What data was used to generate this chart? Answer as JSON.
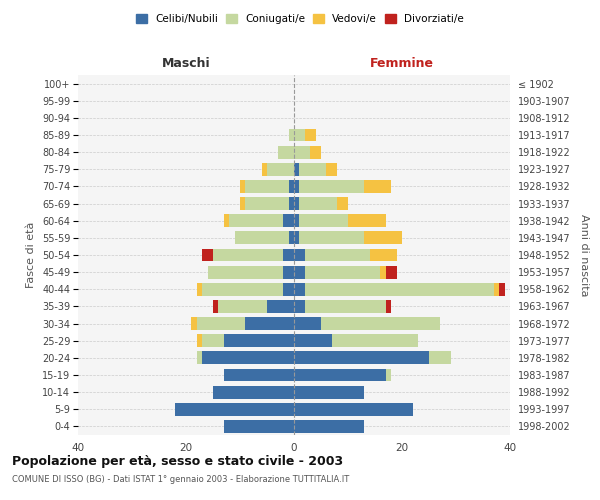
{
  "age_groups": [
    "0-4",
    "5-9",
    "10-14",
    "15-19",
    "20-24",
    "25-29",
    "30-34",
    "35-39",
    "40-44",
    "45-49",
    "50-54",
    "55-59",
    "60-64",
    "65-69",
    "70-74",
    "75-79",
    "80-84",
    "85-89",
    "90-94",
    "95-99",
    "100+"
  ],
  "birth_years": [
    "1998-2002",
    "1993-1997",
    "1988-1992",
    "1983-1987",
    "1978-1982",
    "1973-1977",
    "1968-1972",
    "1963-1967",
    "1958-1962",
    "1953-1957",
    "1948-1952",
    "1943-1947",
    "1938-1942",
    "1933-1937",
    "1928-1932",
    "1923-1927",
    "1918-1922",
    "1913-1917",
    "1908-1912",
    "1903-1907",
    "≤ 1902"
  ],
  "colors": {
    "celibi": "#3c6ea5",
    "coniugati": "#c5d8a0",
    "vedovi": "#f5c242",
    "divorziati": "#c0221e"
  },
  "males": {
    "celibi": [
      13,
      22,
      15,
      13,
      17,
      13,
      9,
      5,
      2,
      2,
      2,
      1,
      2,
      1,
      1,
      0,
      0,
      0,
      0,
      0,
      0
    ],
    "coniugati": [
      0,
      0,
      0,
      0,
      1,
      4,
      9,
      9,
      15,
      14,
      13,
      10,
      10,
      8,
      8,
      5,
      3,
      1,
      0,
      0,
      0
    ],
    "vedovi": [
      0,
      0,
      0,
      0,
      0,
      1,
      1,
      0,
      1,
      0,
      0,
      0,
      1,
      1,
      1,
      1,
      0,
      0,
      0,
      0,
      0
    ],
    "divorziati": [
      0,
      0,
      0,
      0,
      0,
      0,
      0,
      1,
      0,
      0,
      2,
      0,
      0,
      0,
      0,
      0,
      0,
      0,
      0,
      0,
      0
    ]
  },
  "females": {
    "celibi": [
      13,
      22,
      13,
      17,
      25,
      7,
      5,
      2,
      2,
      2,
      2,
      1,
      1,
      1,
      1,
      1,
      0,
      0,
      0,
      0,
      0
    ],
    "coniugati": [
      0,
      0,
      0,
      1,
      4,
      16,
      22,
      15,
      35,
      14,
      12,
      12,
      9,
      7,
      12,
      5,
      3,
      2,
      0,
      0,
      0
    ],
    "vedovi": [
      0,
      0,
      0,
      0,
      0,
      0,
      0,
      0,
      1,
      1,
      5,
      7,
      7,
      2,
      5,
      2,
      2,
      2,
      0,
      0,
      0
    ],
    "divorziati": [
      0,
      0,
      0,
      0,
      0,
      0,
      0,
      1,
      1,
      2,
      0,
      0,
      0,
      0,
      0,
      0,
      0,
      0,
      0,
      0,
      0
    ]
  },
  "xlim": 40,
  "title": "Popolazione per età, sesso e stato civile - 2003",
  "subtitle": "COMUNE DI ISSO (BG) - Dati ISTAT 1° gennaio 2003 - Elaborazione TUTTITALIA.IT",
  "ylabel_left": "Fasce di età",
  "ylabel_right": "Anni di nascita",
  "xlabel_left": "Maschi",
  "xlabel_right": "Femmine",
  "legend_labels": [
    "Celibi/Nubili",
    "Coniugati/e",
    "Vedovi/e",
    "Divorziati/e"
  ],
  "maschi_color": "#333333",
  "femmine_color": "#c0221e",
  "bg_color": "#f5f5f5"
}
